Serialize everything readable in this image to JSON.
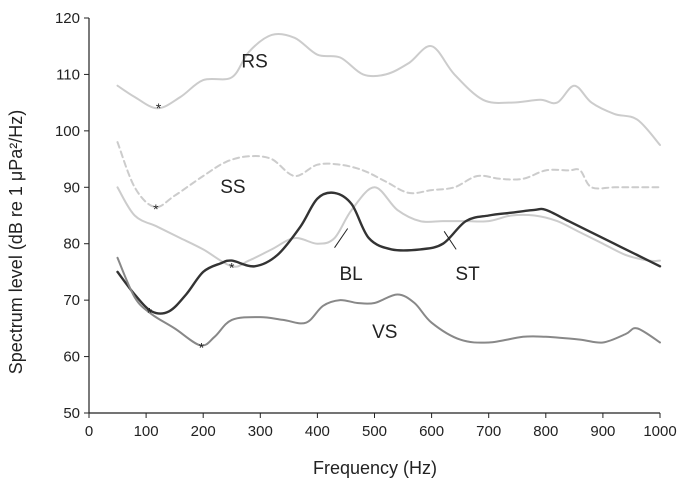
{
  "chart_data": {
    "type": "line",
    "xlabel": "Frequency (Hz)",
    "ylabel": "Spectrum level (dB re 1 μPa²/Hz)",
    "xlim": [
      0,
      1000
    ],
    "ylim": [
      50,
      120
    ],
    "xticks": [
      0,
      100,
      200,
      300,
      400,
      500,
      600,
      700,
      800,
      900,
      1000
    ],
    "yticks": [
      50,
      60,
      70,
      80,
      90,
      100,
      110,
      120
    ],
    "grid": false,
    "series": [
      {
        "name": "RS",
        "color": "#cccccc",
        "dash": "solid",
        "x": [
          50,
          80,
          120,
          160,
          200,
          250,
          280,
          320,
          360,
          400,
          440,
          480,
          520,
          560,
          600,
          640,
          690,
          740,
          790,
          820,
          850,
          880,
          920,
          960,
          1000
        ],
        "y": [
          108,
          106,
          104,
          106,
          109,
          109.5,
          114,
          117,
          116.5,
          113.5,
          113,
          110,
          110,
          112,
          115,
          110,
          105.5,
          105,
          105.5,
          105,
          108,
          105,
          103,
          102,
          97.5
        ],
        "marker": {
          "x": 122,
          "y": 104.2
        }
      },
      {
        "name": "SS",
        "color": "#cccccc",
        "dash": "dashed",
        "x": [
          50,
          80,
          115,
          150,
          200,
          240,
          280,
          320,
          360,
          400,
          440,
          480,
          520,
          560,
          600,
          640,
          680,
          720,
          760,
          800,
          840,
          860,
          880,
          920,
          960,
          1000
        ],
        "y": [
          98,
          90,
          86.5,
          88.5,
          92,
          94.5,
          95.5,
          95,
          92,
          94,
          94,
          93,
          91,
          89,
          89.5,
          90,
          92,
          91.5,
          91.5,
          93,
          93,
          93,
          90,
          90,
          90,
          90
        ],
        "marker": {
          "x": 117,
          "y": 86.3
        }
      },
      {
        "name": "BL",
        "color": "#cccccc",
        "dash": "solid",
        "x": [
          50,
          80,
          120,
          160,
          200,
          250,
          280,
          320,
          360,
          400,
          430,
          460,
          500,
          540,
          580,
          620,
          660,
          700,
          740,
          780,
          820,
          860,
          900,
          940,
          980,
          1000
        ],
        "y": [
          90,
          85,
          83,
          81,
          79,
          76,
          77,
          79,
          81,
          80,
          81,
          86,
          90,
          86,
          84,
          84,
          84,
          84,
          85,
          85,
          84,
          82,
          80,
          78,
          77,
          77
        ],
        "marker": {
          "x": 250,
          "y": 76
        }
      },
      {
        "name": "ST",
        "color": "#333333",
        "dash": "solid",
        "x": [
          50,
          80,
          110,
          140,
          170,
          200,
          230,
          250,
          290,
          330,
          370,
          400,
          430,
          460,
          490,
          530,
          580,
          620,
          660,
          700,
          740,
          780,
          800,
          840,
          880,
          920,
          960,
          1000
        ],
        "y": [
          75,
          71,
          68,
          68,
          71,
          75,
          76.5,
          77,
          76,
          78,
          83,
          88,
          89,
          87,
          81,
          79,
          79,
          80,
          84,
          85,
          85.5,
          86,
          86,
          84,
          82,
          80,
          78,
          76
        ]
      },
      {
        "name": "VS",
        "color": "#888888",
        "dash": "solid",
        "x": [
          50,
          80,
          110,
          150,
          195,
          220,
          250,
          300,
          340,
          380,
          410,
          440,
          470,
          500,
          540,
          570,
          600,
          650,
          700,
          760,
          800,
          860,
          900,
          940,
          960,
          1000
        ],
        "y": [
          77.5,
          70.5,
          67.5,
          65,
          62,
          63.5,
          66.5,
          67,
          66.5,
          66,
          69,
          70,
          69.5,
          69.5,
          71,
          69.5,
          66,
          63,
          62.5,
          63.5,
          63.5,
          63,
          62.5,
          64,
          65,
          62.5
        ],
        "marker": {
          "x": 197,
          "y": 61.8
        }
      }
    ],
    "annotations": [
      {
        "text": "RS",
        "x": 290,
        "y": 112.5
      },
      {
        "text": "SS",
        "x": 252,
        "y": 90.2
      },
      {
        "text": "BL",
        "x": 459,
        "y": 74.8,
        "leader": [
          [
            430,
            79.3
          ],
          [
            453,
            82.7
          ]
        ]
      },
      {
        "text": "ST",
        "x": 663,
        "y": 74.8,
        "leader": [
          [
            643,
            79
          ],
          [
            622,
            82.2
          ]
        ]
      },
      {
        "text": "VS",
        "x": 518,
        "y": 64.5
      }
    ],
    "marker_extra": [
      {
        "x": 106,
        "y": 68
      }
    ]
  }
}
